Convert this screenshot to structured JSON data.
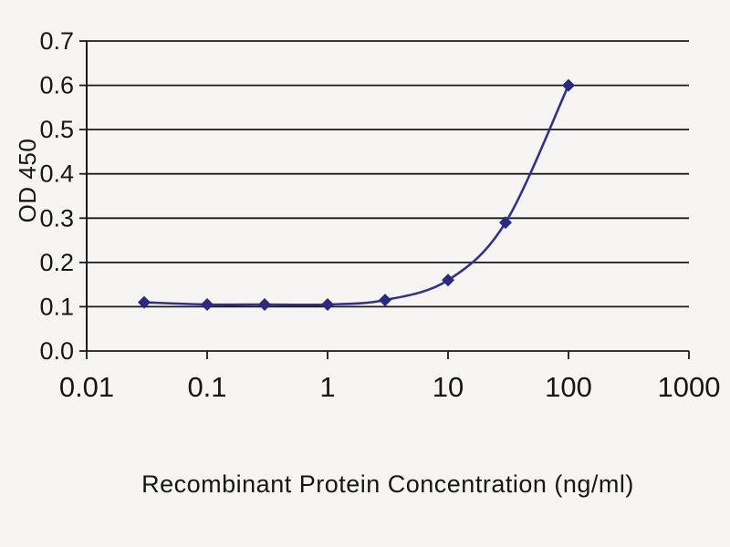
{
  "chart_data": {
    "type": "line",
    "title": "",
    "xlabel": "Recombinant Protein Concentration (ng/ml)",
    "ylabel": "OD 450",
    "x_scale": "log",
    "xlim": [
      0.01,
      1000
    ],
    "ylim": [
      0.0,
      0.7
    ],
    "x_ticks": [
      0.01,
      0.1,
      1,
      10,
      100,
      1000
    ],
    "x_tick_labels": [
      "0.01",
      "0.1",
      "1",
      "10",
      "100",
      "1000"
    ],
    "y_ticks": [
      0.0,
      0.1,
      0.2,
      0.3,
      0.4,
      0.5,
      0.6,
      0.7
    ],
    "y_tick_labels": [
      "0.0",
      "0.1",
      "0.2",
      "0.3",
      "0.4",
      "0.5",
      "0.6",
      "0.7"
    ],
    "grid": "horizontal",
    "legend": "none",
    "colors": {
      "line": "#32328c",
      "marker": "#2a2a80",
      "axis": "#1a1a1a",
      "background": "#f6f5f3"
    },
    "series": [
      {
        "name": "OD 450",
        "marker": "diamond",
        "x": [
          0.03,
          0.1,
          0.3,
          1,
          3,
          10,
          30,
          100
        ],
        "y": [
          0.11,
          0.105,
          0.105,
          0.105,
          0.115,
          0.16,
          0.29,
          0.6
        ]
      }
    ]
  }
}
